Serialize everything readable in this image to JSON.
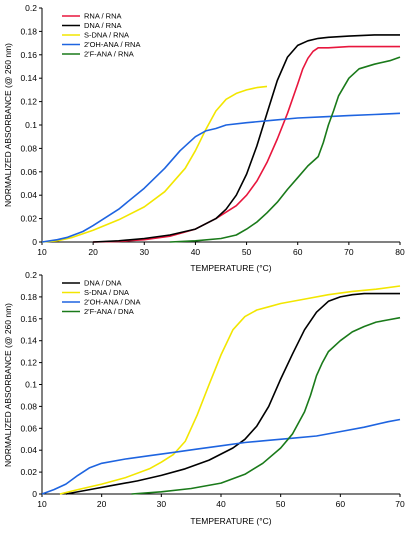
{
  "chart_data": [
    {
      "type": "line",
      "xlabel": "TEMPERATURE (°C)",
      "ylabel": "NORMALIZED ABSORBANCE (@ 260 nm)",
      "xlim": [
        10,
        80
      ],
      "ylim": [
        0,
        0.2
      ],
      "xticks": [
        10,
        20,
        30,
        40,
        50,
        60,
        70,
        80
      ],
      "yticks": [
        0,
        0.02,
        0.04,
        0.06,
        0.08,
        0.1,
        0.12,
        0.14,
        0.16,
        0.18,
        0.2
      ],
      "legend_position": "top-left",
      "series": [
        {
          "name": "RNA / RNA",
          "color": "#e8163d",
          "x": [
            20,
            25,
            30,
            35,
            40,
            44,
            48,
            50,
            52,
            54,
            56,
            58,
            60,
            61,
            62,
            63,
            64,
            66,
            70,
            75,
            80
          ],
          "y": [
            0,
            0.0005,
            0.002,
            0.005,
            0.011,
            0.02,
            0.031,
            0.04,
            0.052,
            0.068,
            0.088,
            0.11,
            0.135,
            0.148,
            0.157,
            0.163,
            0.166,
            0.166,
            0.167,
            0.167,
            0.167
          ]
        },
        {
          "name": "DNA / RNA",
          "color": "#000000",
          "x": [
            20,
            25,
            30,
            35,
            40,
            44,
            46,
            48,
            50,
            52,
            54,
            56,
            58,
            60,
            62,
            64,
            66,
            70,
            75,
            80
          ],
          "y": [
            0,
            0.001,
            0.003,
            0.006,
            0.011,
            0.02,
            0.028,
            0.04,
            0.058,
            0.082,
            0.11,
            0.138,
            0.158,
            0.168,
            0.172,
            0.174,
            0.175,
            0.176,
            0.177,
            0.177
          ]
        },
        {
          "name": "S-DNA / RNA",
          "color": "#f2e600",
          "x": [
            10,
            13,
            16,
            20,
            25,
            30,
            34,
            38,
            40,
            42,
            44,
            46,
            48,
            50,
            52,
            54
          ],
          "y": [
            0,
            0.001,
            0.004,
            0.01,
            0.019,
            0.03,
            0.043,
            0.063,
            0.078,
            0.096,
            0.112,
            0.122,
            0.127,
            0.13,
            0.132,
            0.133
          ]
        },
        {
          "name": "2'OH-ANA / RNA",
          "color": "#1e64e0",
          "x": [
            10,
            13,
            15,
            18,
            20,
            25,
            30,
            34,
            37,
            40,
            42,
            44,
            46,
            50,
            55,
            60,
            65,
            70,
            75,
            80
          ],
          "y": [
            0,
            0.002,
            0.004,
            0.009,
            0.014,
            0.028,
            0.046,
            0.063,
            0.078,
            0.09,
            0.095,
            0.097,
            0.1,
            0.102,
            0.104,
            0.106,
            0.107,
            0.108,
            0.109,
            0.11
          ]
        },
        {
          "name": "2'F-ANA / RNA",
          "color": "#1a7a1a",
          "x": [
            35,
            40,
            45,
            48,
            50,
            52,
            54,
            56,
            58,
            60,
            62,
            64,
            65,
            66,
            67,
            68,
            70,
            72,
            75,
            78,
            80
          ],
          "y": [
            0,
            0.001,
            0.003,
            0.006,
            0.011,
            0.017,
            0.025,
            0.034,
            0.045,
            0.055,
            0.065,
            0.073,
            0.085,
            0.1,
            0.112,
            0.125,
            0.14,
            0.148,
            0.152,
            0.155,
            0.158
          ]
        }
      ]
    },
    {
      "type": "line",
      "xlabel": "TEMPERATURE (°C)",
      "ylabel": "NORMALIZED ABSORBANCE (@ 260 nm)",
      "xlim": [
        10,
        70
      ],
      "ylim": [
        0,
        0.2
      ],
      "xticks": [
        10,
        20,
        30,
        40,
        50,
        60,
        70
      ],
      "yticks": [
        0,
        0.02,
        0.04,
        0.06,
        0.08,
        0.1,
        0.12,
        0.14,
        0.16,
        0.18,
        0.2
      ],
      "legend_position": "top-left",
      "series": [
        {
          "name": "DNA / DNA",
          "color": "#000000",
          "x": [
            14,
            18,
            22,
            26,
            30,
            34,
            38,
            42,
            44,
            46,
            48,
            50,
            52,
            54,
            56,
            58,
            60,
            62,
            64,
            66,
            70
          ],
          "y": [
            0,
            0.004,
            0.008,
            0.012,
            0.017,
            0.023,
            0.031,
            0.042,
            0.05,
            0.062,
            0.08,
            0.105,
            0.128,
            0.15,
            0.166,
            0.176,
            0.18,
            0.182,
            0.183,
            0.183,
            0.183
          ]
        },
        {
          "name": "S-DNA / DNA",
          "color": "#f2e600",
          "x": [
            13,
            16,
            20,
            24,
            28,
            30,
            32,
            34,
            36,
            38,
            40,
            42,
            44,
            46,
            48,
            50,
            54,
            58,
            62,
            66,
            70
          ],
          "y": [
            0,
            0.004,
            0.009,
            0.015,
            0.023,
            0.029,
            0.036,
            0.048,
            0.072,
            0.1,
            0.127,
            0.15,
            0.162,
            0.168,
            0.171,
            0.174,
            0.178,
            0.182,
            0.185,
            0.187,
            0.19
          ]
        },
        {
          "name": "2'OH-ANA / DNA",
          "color": "#1e64e0",
          "x": [
            10,
            12,
            14,
            16,
            18,
            20,
            24,
            28,
            32,
            36,
            40,
            44,
            48,
            52,
            56,
            60,
            64,
            68,
            70
          ],
          "y": [
            0,
            0.004,
            0.009,
            0.017,
            0.024,
            0.028,
            0.032,
            0.035,
            0.038,
            0.041,
            0.044,
            0.047,
            0.049,
            0.051,
            0.053,
            0.057,
            0.061,
            0.066,
            0.068
          ]
        },
        {
          "name": "2'F-ANA / DNA",
          "color": "#1a7a1a",
          "x": [
            25,
            30,
            35,
            40,
            44,
            47,
            50,
            52,
            54,
            55,
            56,
            57,
            58,
            60,
            62,
            64,
            66,
            68,
            70
          ],
          "y": [
            0,
            0.002,
            0.005,
            0.01,
            0.018,
            0.028,
            0.042,
            0.055,
            0.075,
            0.09,
            0.108,
            0.12,
            0.13,
            0.14,
            0.148,
            0.153,
            0.157,
            0.159,
            0.161
          ]
        }
      ]
    }
  ]
}
